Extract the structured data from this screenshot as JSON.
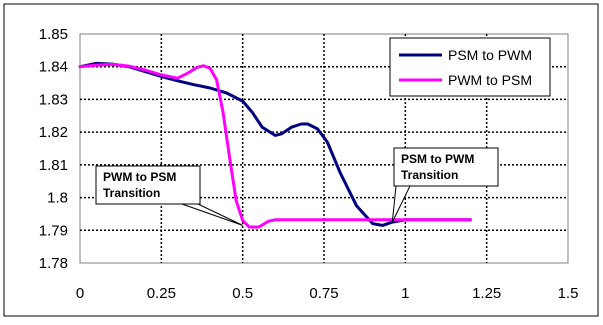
{
  "chart_data": {
    "type": "line",
    "title": "",
    "xlabel": "",
    "ylabel": "",
    "xlim": [
      0,
      1.5
    ],
    "ylim": [
      1.78,
      1.85
    ],
    "x_ticks": [
      "0",
      "0.25",
      "0.5",
      "0.75",
      "1",
      "1.25",
      "1.5"
    ],
    "y_ticks": [
      "1.78",
      "1.79",
      "1.8",
      "1.81",
      "1.82",
      "1.83",
      "1.84",
      "1.85"
    ],
    "grid": "dotted-both",
    "legend_position": "top-right",
    "series": [
      {
        "name": "PSM to PWM",
        "color": "#000080",
        "x": [
          0,
          0.05,
          0.1,
          0.15,
          0.2,
          0.25,
          0.3,
          0.35,
          0.4,
          0.45,
          0.5,
          0.53,
          0.56,
          0.6,
          0.62,
          0.65,
          0.68,
          0.7,
          0.73,
          0.76,
          0.8,
          0.85,
          0.9,
          0.93,
          0.96,
          1.0,
          1.05,
          1.1,
          1.15,
          1.2
        ],
        "y": [
          1.84,
          1.841,
          1.8408,
          1.84,
          1.8385,
          1.837,
          1.8357,
          1.8345,
          1.8335,
          1.832,
          1.8295,
          1.826,
          1.8215,
          1.819,
          1.8195,
          1.8215,
          1.8225,
          1.8225,
          1.821,
          1.817,
          1.8075,
          1.7975,
          1.792,
          1.7915,
          1.7925,
          1.7932,
          1.7932,
          1.7932,
          1.7932,
          1.7932
        ]
      },
      {
        "name": "PWM to PSM",
        "color": "#ff00ff",
        "x": [
          0,
          0.05,
          0.1,
          0.15,
          0.2,
          0.25,
          0.3,
          0.33,
          0.36,
          0.38,
          0.4,
          0.42,
          0.44,
          0.46,
          0.48,
          0.5,
          0.52,
          0.55,
          0.58,
          0.6,
          0.7,
          0.8,
          0.9,
          1.0,
          1.1,
          1.2
        ],
        "y": [
          1.84,
          1.8405,
          1.8407,
          1.8402,
          1.839,
          1.8375,
          1.8365,
          1.838,
          1.8398,
          1.8403,
          1.8395,
          1.836,
          1.826,
          1.812,
          1.799,
          1.793,
          1.791,
          1.791,
          1.7928,
          1.7932,
          1.7932,
          1.7932,
          1.7932,
          1.7932,
          1.7932,
          1.7932
        ]
      }
    ],
    "annotations": [
      {
        "text_line1": "PWM to PSM",
        "text_line2": "Transition",
        "target_x": 0.5,
        "target_y": 1.7915
      },
      {
        "text_line1": "PSM to PWM",
        "text_line2": "Transition",
        "target_x": 0.96,
        "target_y": 1.7925
      }
    ]
  }
}
